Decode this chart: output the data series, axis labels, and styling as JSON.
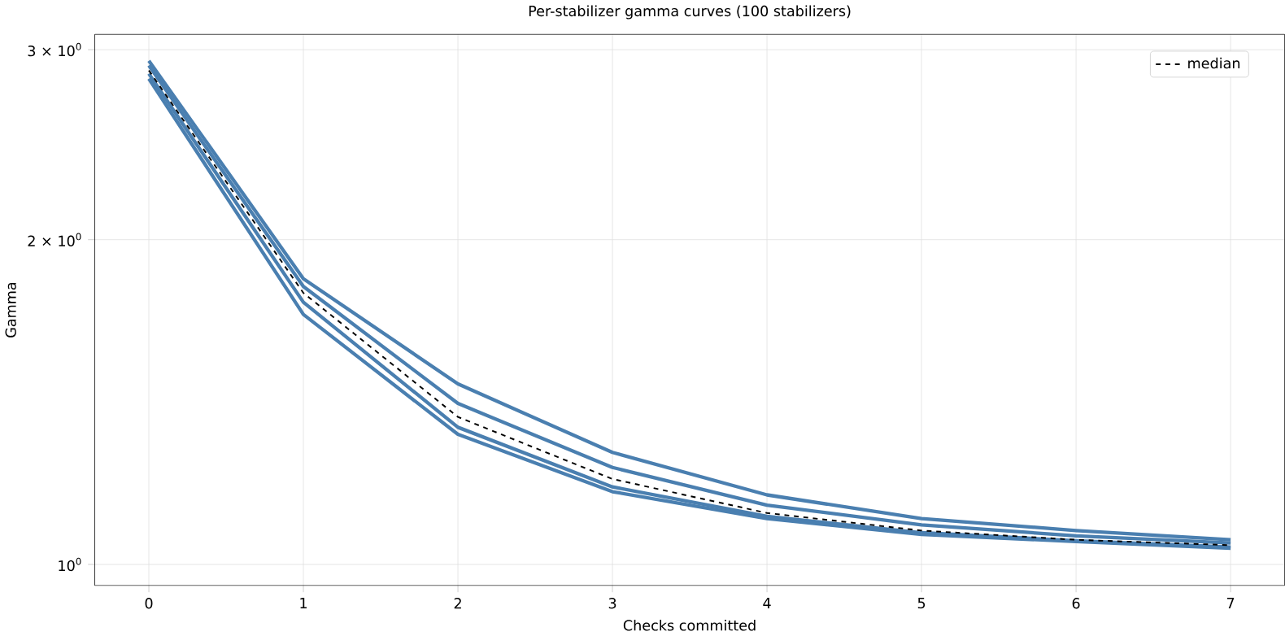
{
  "chart_data": {
    "type": "line",
    "title": "Per-stabilizer gamma curves (100 stabilizers)",
    "xlabel": "Checks committed",
    "ylabel": "Gamma",
    "x": [
      0,
      1,
      2,
      3,
      4,
      5,
      6,
      7
    ],
    "series": [
      {
        "color": "#4a7fb0",
        "values": [
          2.93,
          1.84,
          1.47,
          1.27,
          1.16,
          1.103,
          1.075,
          1.054
        ]
      },
      {
        "color": "#4a7fb0",
        "values": [
          2.9,
          1.81,
          1.41,
          1.23,
          1.135,
          1.088,
          1.063,
          1.047
        ]
      },
      {
        "color": "#4a7fb0",
        "values": [
          2.85,
          1.75,
          1.34,
          1.18,
          1.108,
          1.07,
          1.052,
          1.038
        ]
      },
      {
        "color": "#4a7fb0",
        "values": [
          2.82,
          1.705,
          1.32,
          1.168,
          1.103,
          1.066,
          1.05,
          1.035
        ]
      },
      {
        "name": "median",
        "color": "#000000",
        "line_style": "dashed",
        "values": [
          2.87,
          1.785,
          1.37,
          1.2,
          1.116,
          1.075,
          1.054,
          1.042
        ]
      }
    ],
    "log": "y",
    "xlim": [
      -0.35,
      7.35
    ],
    "ylim": [
      0.956,
      3.1
    ],
    "xticks": [
      0,
      1,
      2,
      3,
      4,
      5,
      6,
      7
    ],
    "yticks": [
      {
        "value": 1,
        "label": "10$^{0}$"
      },
      {
        "value": 2,
        "label": "2 × 10$^{0}$"
      },
      {
        "value": 3,
        "label": "3 × 10$^{0}$"
      }
    ],
    "grid": true,
    "legend": "top right",
    "marker": "none"
  }
}
